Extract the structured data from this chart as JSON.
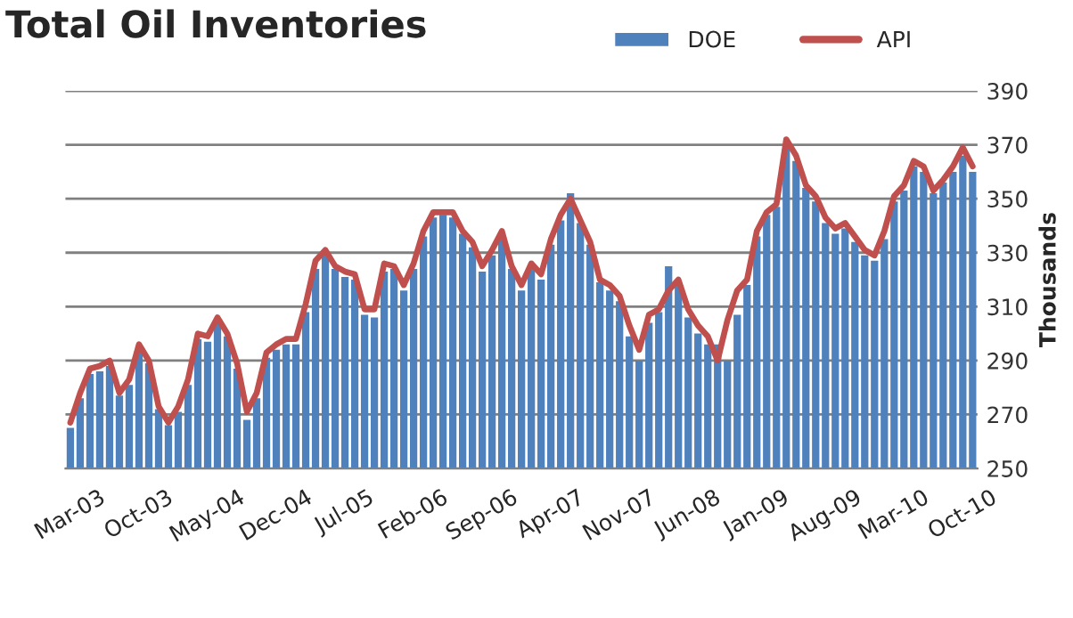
{
  "chart_data": {
    "type": "bar",
    "title": "Total Oil Inventories",
    "ylabel": "Thousands",
    "categories": [
      "Mar-03",
      null,
      null,
      null,
      null,
      null,
      null,
      "Oct-03",
      null,
      null,
      null,
      null,
      null,
      null,
      "May-04",
      null,
      null,
      null,
      null,
      null,
      null,
      "Dec-04",
      null,
      null,
      null,
      null,
      null,
      null,
      "Jul-05",
      null,
      null,
      null,
      null,
      null,
      null,
      "Feb-06",
      null,
      null,
      null,
      null,
      null,
      null,
      "Sep-06",
      null,
      null,
      null,
      null,
      null,
      null,
      "Apr-07",
      null,
      null,
      null,
      null,
      null,
      null,
      "Nov-07",
      null,
      null,
      null,
      null,
      null,
      null,
      "Jun-08",
      null,
      null,
      null,
      null,
      null,
      null,
      "Jan-09",
      null,
      null,
      null,
      null,
      null,
      null,
      "Aug-09",
      null,
      null,
      null,
      null,
      null,
      null,
      "Mar-10",
      null,
      null,
      null,
      null,
      null,
      null,
      "Oct-10",
      null
    ],
    "series": [
      {
        "name": "DOE",
        "color": "#4f81bd",
        "values": [
          265,
          276,
          285,
          286,
          288,
          277,
          281,
          294,
          289,
          272,
          266,
          271,
          281,
          298,
          297,
          304,
          299,
          287,
          268,
          276,
          291,
          294,
          296,
          296,
          308,
          324,
          329,
          324,
          321,
          320,
          307,
          306,
          323,
          324,
          316,
          324,
          336,
          343,
          344,
          343,
          337,
          332,
          323,
          329,
          335,
          324,
          316,
          324,
          320,
          333,
          342,
          352,
          341,
          333,
          319,
          316,
          312,
          299,
          290,
          304,
          308,
          325,
          318,
          306,
          300,
          296,
          296,
          290,
          307,
          318,
          336,
          344,
          347,
          370,
          364,
          354,
          349,
          341,
          337,
          339,
          334,
          329,
          327,
          335,
          349,
          353,
          362,
          360,
          352,
          356,
          360,
          366,
          360
        ]
      },
      {
        "name": "API",
        "type": "line",
        "color": "#c0504d",
        "values": [
          267,
          278,
          287,
          288,
          290,
          278,
          283,
          296,
          290,
          273,
          267,
          273,
          283,
          300,
          299,
          306,
          300,
          289,
          271,
          278,
          293,
          296,
          298,
          298,
          311,
          327,
          331,
          325,
          323,
          322,
          309,
          309,
          326,
          325,
          318,
          326,
          338,
          345,
          345,
          345,
          338,
          334,
          325,
          331,
          338,
          325,
          318,
          326,
          322,
          335,
          344,
          350,
          342,
          334,
          320,
          318,
          314,
          303,
          294,
          307,
          309,
          316,
          320,
          309,
          303,
          299,
          290,
          305,
          316,
          320,
          338,
          345,
          348,
          372,
          366,
          355,
          351,
          343,
          339,
          341,
          336,
          331,
          329,
          338,
          351,
          355,
          364,
          362,
          353,
          357,
          362,
          369,
          362
        ]
      }
    ],
    "ylim": [
      250,
      390
    ],
    "yticks": [
      250,
      270,
      290,
      310,
      330,
      350,
      370,
      390
    ],
    "grid": "y",
    "legend": "top right"
  }
}
